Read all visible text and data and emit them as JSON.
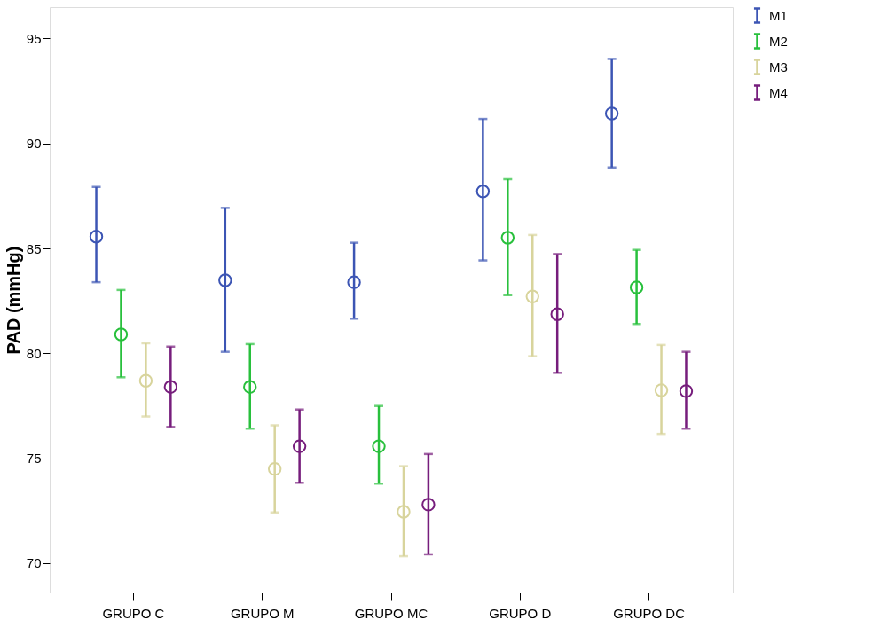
{
  "chart_data": {
    "type": "scatter",
    "ylabel": "PAD (mmHg)",
    "categories": [
      "GRUPO C",
      "GRUPO M",
      "GRUPO MC",
      "GRUPO D",
      "GRUPO DC"
    ],
    "ylim": [
      68.6,
      96.5
    ],
    "yticks": [
      70,
      75,
      80,
      85,
      90,
      95
    ],
    "grid": false,
    "legend": "top right",
    "marker": "circle",
    "series": [
      {
        "name": "M1",
        "color": "#3c55b4",
        "values": [
          85.56,
          83.48,
          83.39,
          87.72,
          91.43
        ],
        "errors": [
          [
            83.39,
            87.93
          ],
          [
            80.07,
            86.93
          ],
          [
            81.65,
            85.27
          ],
          [
            84.43,
            91.17
          ],
          [
            88.86,
            94.03
          ]
        ]
      },
      {
        "name": "M2",
        "color": "#28c03c",
        "values": [
          80.9,
          78.4,
          75.57,
          85.51,
          83.14
        ],
        "errors": [
          [
            78.86,
            83.02
          ],
          [
            76.41,
            80.44
          ],
          [
            73.79,
            77.49
          ],
          [
            82.77,
            88.3
          ],
          [
            81.4,
            84.93
          ]
        ]
      },
      {
        "name": "M3",
        "color": "#d8d49c",
        "values": [
          78.69,
          74.49,
          72.45,
          82.71,
          78.24
        ],
        "errors": [
          [
            76.99,
            80.48
          ],
          [
            72.41,
            76.57
          ],
          [
            70.33,
            74.62
          ],
          [
            79.86,
            85.64
          ],
          [
            76.16,
            80.4
          ]
        ]
      },
      {
        "name": "M4",
        "color": "#761d7c",
        "values": [
          78.4,
          75.57,
          72.79,
          81.86,
          78.2
        ],
        "errors": [
          [
            76.49,
            80.32
          ],
          [
            73.83,
            77.32
          ],
          [
            70.42,
            75.2
          ],
          [
            79.07,
            84.73
          ],
          [
            76.41,
            80.07
          ]
        ]
      }
    ]
  }
}
